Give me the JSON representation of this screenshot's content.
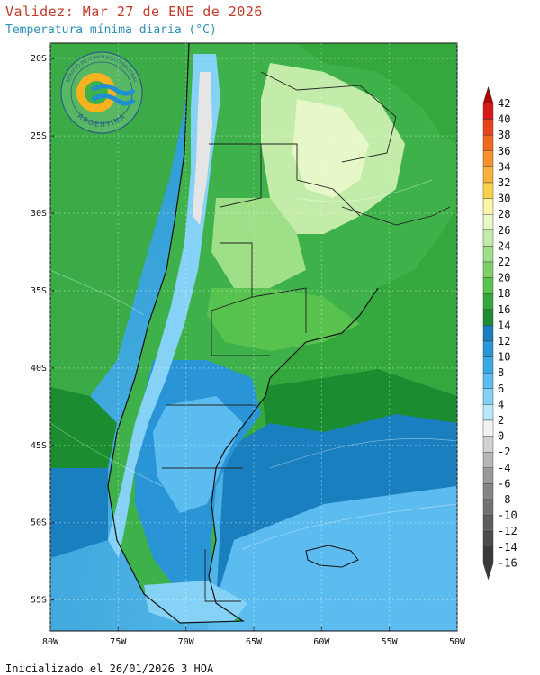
{
  "header": {
    "title": "Validez: Mar 27 de ENE de 2026",
    "subtitle": "Temperatura mínima diaria (°C)"
  },
  "footer": {
    "init_text": "Inicializado el 26/01/2026 3 HOA"
  },
  "logo": {
    "top_text": "SERVICIO METEOROLÓGICO NACIONAL",
    "bottom_text": "ARGENTINA"
  },
  "map": {
    "lat_ticks": [
      "20S",
      "25S",
      "30S",
      "35S",
      "40S",
      "45S",
      "50S",
      "55S"
    ],
    "lon_ticks": [
      "80W",
      "75W",
      "70W",
      "65W",
      "60W",
      "55W",
      "50W"
    ],
    "lon_range": [
      -80,
      -50
    ],
    "lat_range": [
      -57,
      -19
    ],
    "ocean_color": "#3aa9dc",
    "land_base_color": "#3eb14a"
  },
  "colorbar": {
    "levels": [
      "42",
      "40",
      "38",
      "36",
      "34",
      "32",
      "30",
      "28",
      "26",
      "24",
      "22",
      "20",
      "18",
      "16",
      "14",
      "12",
      "10",
      "8",
      "6",
      "4",
      "2",
      "0",
      "-2",
      "-4",
      "-6",
      "-8",
      "-10",
      "-12",
      "-14",
      "-16"
    ],
    "colors": [
      "#b30000",
      "#d7191c",
      "#e8431a",
      "#f06a1e",
      "#f5902d",
      "#f8b23a",
      "#fbd349",
      "#fdf3a6",
      "#e6f7c8",
      "#c3ecaa",
      "#9fdf88",
      "#7ed06b",
      "#58c24f",
      "#34a83c",
      "#1c8c30",
      "#1a7fbf",
      "#2a95d6",
      "#3ba8e6",
      "#5cbcf0",
      "#86d2f7",
      "#b8e8fb",
      "#f2f2f2",
      "#d0d0d0",
      "#b5b5b5",
      "#9a9a9a",
      "#858585",
      "#717171",
      "#5e5e5e",
      "#4c4c4c",
      "#3a3a3a"
    ]
  }
}
